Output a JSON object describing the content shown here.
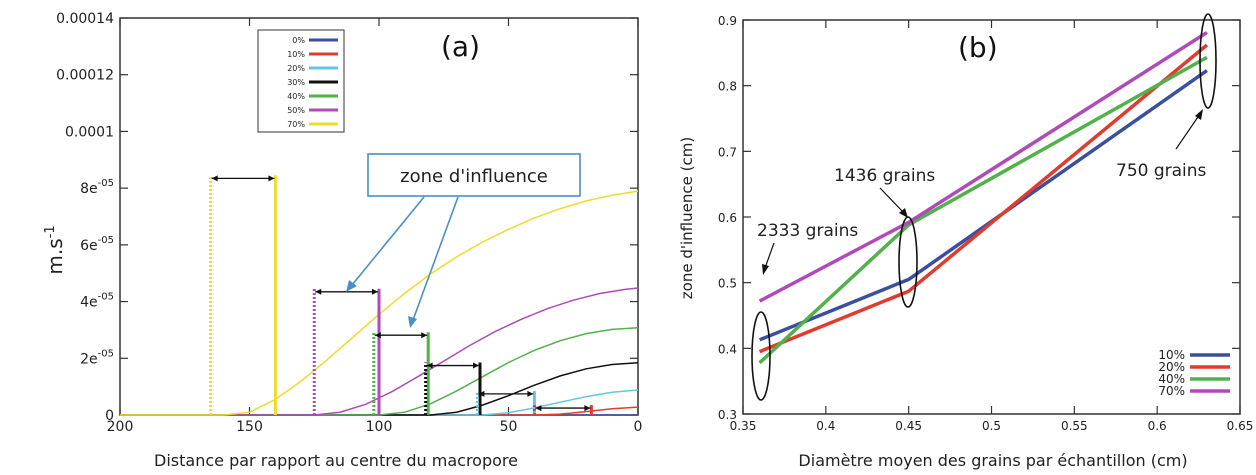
{
  "chart_data": [
    {
      "panel": "(a)",
      "type": "line",
      "xlabel": "Distance par rapport au centre du macropore",
      "ylabel_base": "m.s",
      "ylabel_sup": "-1",
      "xlim": [
        200,
        0
      ],
      "ylim": [
        0,
        0.00014
      ],
      "x_ticks": [
        {
          "value": 200,
          "label": "200"
        },
        {
          "value": 150,
          "label": "150"
        },
        {
          "value": 100,
          "label": "100"
        },
        {
          "value": 50,
          "label": "50"
        },
        {
          "value": 0,
          "label": "0"
        }
      ],
      "y_ticks": [
        {
          "value": 0,
          "base": "0",
          "sup": ""
        },
        {
          "value": 2e-05,
          "base": "2e",
          "sup": "-05"
        },
        {
          "value": 4e-05,
          "base": "4e",
          "sup": "-05"
        },
        {
          "value": 6e-05,
          "base": "6e",
          "sup": "-05"
        },
        {
          "value": 8e-05,
          "base": "8e",
          "sup": "-05"
        },
        {
          "value": 0.0001,
          "base": "0.0001",
          "sup": ""
        },
        {
          "value": 0.00012,
          "base": "0.00012",
          "sup": ""
        },
        {
          "value": 0.00014,
          "base": "0.00014",
          "sup": ""
        }
      ],
      "series": [
        {
          "name": "0%",
          "color": "#3a4fa0",
          "x": [
            200,
            0
          ],
          "y": [
            0,
            0
          ]
        },
        {
          "name": "10%",
          "color": "#e23b2e",
          "x": [
            200,
            40,
            30,
            20,
            10,
            0
          ],
          "y": [
            0,
            0,
            3e-07,
            1.2e-06,
            2.2e-06,
            2.8e-06
          ]
        },
        {
          "name": "20%",
          "color": "#62c7e0",
          "x": [
            200,
            60,
            50,
            40,
            30,
            20,
            10,
            0
          ],
          "y": [
            0,
            0,
            8e-07,
            2.5e-06,
            4.5e-06,
            6.5e-06,
            8e-06,
            8.8e-06
          ]
        },
        {
          "name": "30%",
          "color": "#111111",
          "x": [
            200,
            80,
            70,
            60,
            50,
            40,
            30,
            20,
            10,
            0
          ],
          "y": [
            0,
            0,
            1e-06,
            3.5e-06,
            6.8e-06,
            1.05e-05,
            1.38e-05,
            1.63e-05,
            1.78e-05,
            1.84e-05
          ]
        },
        {
          "name": "40%",
          "color": "#52b24a",
          "x": [
            200,
            100,
            90,
            80,
            70,
            60,
            50,
            40,
            30,
            20,
            10,
            0
          ],
          "y": [
            0,
            0,
            1e-06,
            4e-06,
            8.5e-06,
            1.35e-05,
            1.85e-05,
            2.28e-05,
            2.62e-05,
            2.87e-05,
            3.02e-05,
            3.08e-05
          ]
        },
        {
          "name": "50%",
          "color": "#b04aba",
          "x": [
            200,
            125,
            115,
            105,
            95,
            85,
            75,
            65,
            55,
            45,
            35,
            25,
            15,
            5,
            0
          ],
          "y": [
            0,
            0,
            1e-06,
            3.8e-06,
            8.2e-06,
            1.35e-05,
            1.9e-05,
            2.45e-05,
            2.95e-05,
            3.38e-05,
            3.75e-05,
            4.05e-05,
            4.28e-05,
            4.43e-05,
            4.48e-05
          ]
        },
        {
          "name": "70%",
          "color": "#f0dc2a",
          "x": [
            200,
            160,
            150,
            140,
            130,
            120,
            110,
            100,
            90,
            80,
            70,
            60,
            50,
            40,
            30,
            20,
            10,
            0
          ],
          "y": [
            0,
            0,
            1e-06,
            5.5e-06,
            1.2e-05,
            1.95e-05,
            2.75e-05,
            3.55e-05,
            4.3e-05,
            4.98e-05,
            5.58e-05,
            6.1e-05,
            6.55e-05,
            6.95e-05,
            7.28e-05,
            7.55e-05,
            7.75e-05,
            7.9e-05
          ]
        }
      ],
      "influence_zones": [
        {
          "color": "#f0dc2a",
          "x_dotted": 165,
          "x_solid": 140,
          "y_top": 8.45e-05
        },
        {
          "color": "#b04aba",
          "x_dotted": 125,
          "x_solid": 100,
          "y_top": 4.45e-05
        },
        {
          "color": "#52b24a",
          "x_dotted": 102,
          "x_solid": 81,
          "y_top": 2.92e-05
        },
        {
          "color": "#111111",
          "x_dotted": 82,
          "x_solid": 61,
          "y_top": 1.85e-05
        },
        {
          "color": "#62c7e0",
          "x_dotted": 62,
          "x_solid": 40,
          "y_top": 8.5e-06
        },
        {
          "color": "#e23b2e",
          "x_dotted": 40,
          "x_solid": 18,
          "y_top": 3.5e-06
        }
      ],
      "annotation": "zone d'influence",
      "panel_label": "(a)"
    },
    {
      "panel": "(b)",
      "type": "line",
      "xlabel": "Diamètre moyen des grains par échantillon (cm)",
      "ylabel": "zone d'influence (cm)",
      "xlim": [
        0.35,
        0.65
      ],
      "ylim": [
        0.3,
        0.9
      ],
      "x_ticks": [
        {
          "value": 0.35,
          "label": "0.35"
        },
        {
          "value": 0.4,
          "label": "0.4"
        },
        {
          "value": 0.45,
          "label": "0.45"
        },
        {
          "value": 0.5,
          "label": "0.5"
        },
        {
          "value": 0.55,
          "label": "0.55"
        },
        {
          "value": 0.6,
          "label": "0.6"
        },
        {
          "value": 0.65,
          "label": "0.65"
        }
      ],
      "y_ticks": [
        {
          "value": 0.3,
          "label": "0.3"
        },
        {
          "value": 0.4,
          "label": "0.4"
        },
        {
          "value": 0.5,
          "label": "0.5"
        },
        {
          "value": 0.6,
          "label": "0.6"
        },
        {
          "value": 0.7,
          "label": "0.7"
        },
        {
          "value": 0.8,
          "label": "0.8"
        },
        {
          "value": 0.9,
          "label": "0.9"
        }
      ],
      "series": [
        {
          "name": "10%",
          "color": "#3a4fa0",
          "x": [
            0.36,
            0.45,
            0.63
          ],
          "y": [
            0.413,
            0.505,
            0.823
          ]
        },
        {
          "name": "20%",
          "color": "#e23b2e",
          "x": [
            0.36,
            0.45,
            0.63
          ],
          "y": [
            0.395,
            0.487,
            0.862
          ]
        },
        {
          "name": "40%",
          "color": "#52b24a",
          "x": [
            0.36,
            0.45,
            0.63
          ],
          "y": [
            0.378,
            0.588,
            0.843
          ]
        },
        {
          "name": "70%",
          "color": "#b04aba",
          "x": [
            0.36,
            0.45,
            0.63
          ],
          "y": [
            0.472,
            0.592,
            0.881
          ]
        }
      ],
      "group_labels": [
        "2333 grains",
        "1436 grains",
        "750 grains"
      ],
      "panel_label": "(b)"
    }
  ]
}
